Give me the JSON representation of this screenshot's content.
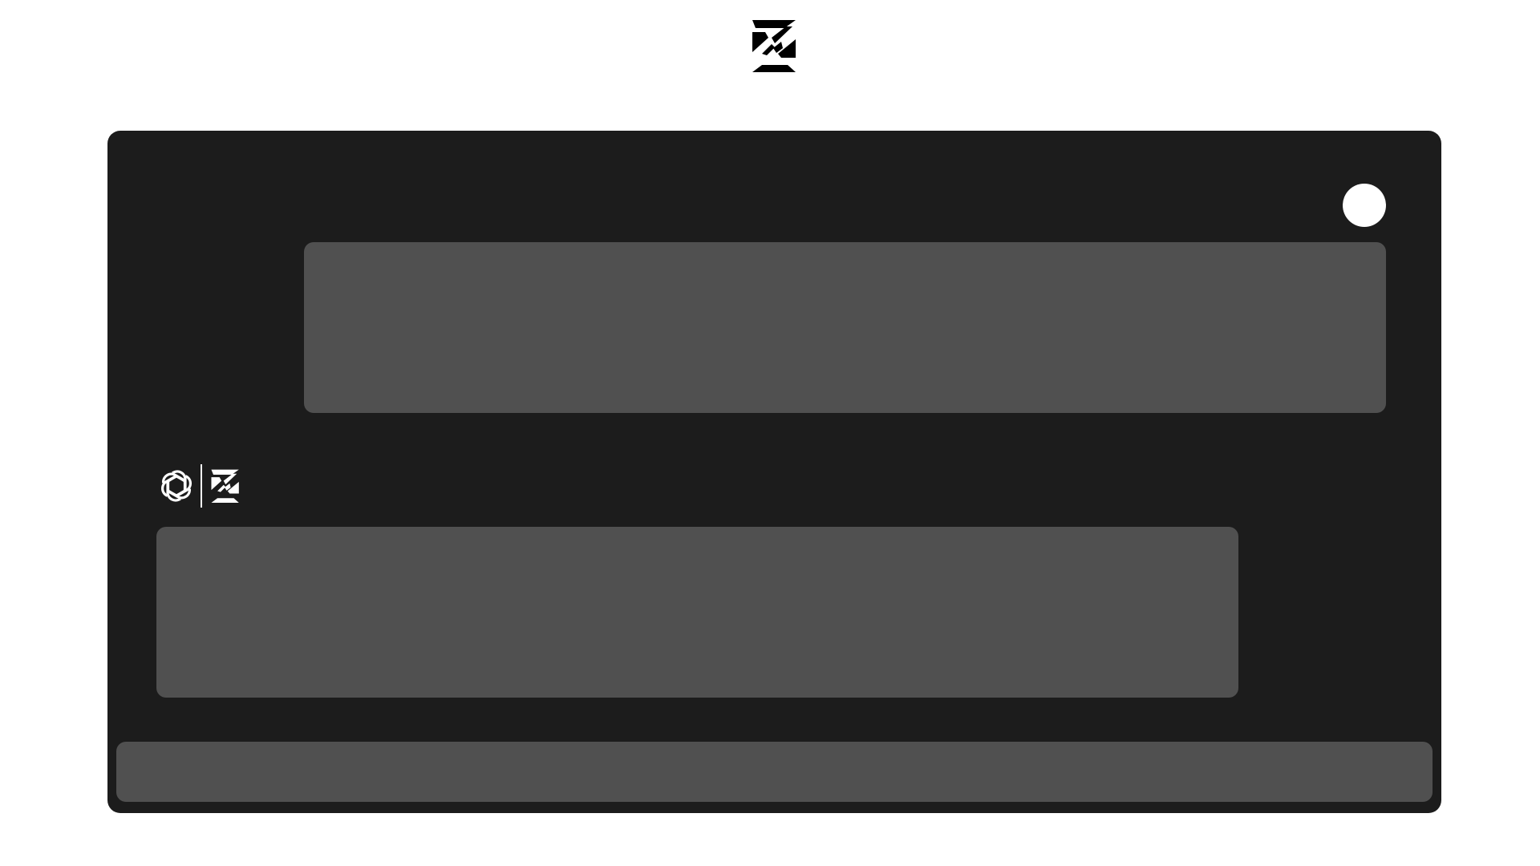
{
  "header": {
    "logo_icon": "brand-logo-icon"
  },
  "chat": {
    "background_color": "#1c1c1c",
    "bubble_color": "#505050",
    "user": {
      "avatar_icon": "user-avatar"
    },
    "messages": [
      {
        "role": "user",
        "text": ""
      },
      {
        "role": "assistant",
        "text": ""
      }
    ],
    "assistant": {
      "icons": [
        "openai-icon",
        "brand-logo-icon"
      ]
    },
    "composer": {
      "value": "",
      "placeholder": ""
    }
  }
}
